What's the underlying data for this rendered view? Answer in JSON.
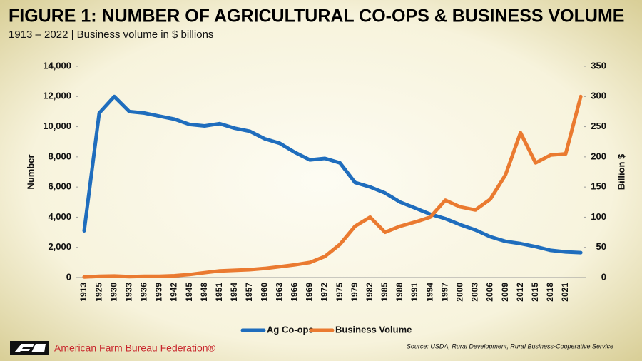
{
  "chart_data": {
    "type": "line",
    "title": "FIGURE 1: NUMBER OF AGRICULTURAL CO-OPS & BUSINESS VOLUME",
    "subtitle": "1913 – 2022 | Business volume in $ billions",
    "ylabel": "Number",
    "y2label": "Billion $",
    "categories": [
      "1913",
      "1925",
      "1930",
      "1933",
      "1936",
      "1939",
      "1942",
      "1945",
      "1948",
      "1951",
      "1954",
      "1957",
      "1960",
      "1963",
      "1966",
      "1969",
      "1972",
      "1975",
      "1979",
      "1982",
      "1985",
      "1988",
      "1991",
      "1994",
      "1997",
      "2000",
      "2003",
      "2006",
      "2009",
      "2012",
      "2015",
      "2018",
      "2021",
      null
    ],
    "series": [
      {
        "name": "Ag Co-ops",
        "color": "#1f6dbd",
        "values": [
          3100,
          10900,
          12000,
          11000,
          10900,
          10700,
          10500,
          10150,
          10050,
          10200,
          9900,
          9700,
          9200,
          8900,
          8300,
          7800,
          7900,
          7600,
          6300,
          6000,
          5600,
          5000,
          4600,
          4200,
          3900,
          3500,
          3150,
          2700,
          2400,
          2250,
          2050,
          1800,
          1700,
          1650
        ]
      },
      {
        "name": "Business Volume",
        "color": "#ea7a30",
        "axis": "y2",
        "values": [
          1,
          2,
          2.5,
          1.5,
          2,
          2,
          3,
          5,
          8,
          11,
          12,
          13,
          15,
          18,
          21,
          25,
          35,
          55,
          85,
          100,
          75,
          85,
          92,
          100,
          128,
          117,
          112,
          130,
          170,
          240,
          190,
          203,
          205,
          300
        ]
      }
    ],
    "ylim": [
      0,
      14000
    ],
    "yticks": [
      0,
      {
        "value": 2000,
        "label": "2,000"
      },
      {
        "value": 4000,
        "label": "4,000"
      },
      {
        "value": 6000,
        "label": "6,000"
      },
      {
        "value": 8000,
        "label": "8,000"
      },
      {
        "value": 10000,
        "label": "10,000"
      },
      {
        "value": 12000,
        "label": "12,000"
      },
      {
        "value": 14000,
        "label": "14,000"
      }
    ],
    "y2lim": [
      0,
      350
    ],
    "y2ticks": [
      0,
      50,
      100,
      150,
      200,
      250,
      300,
      350
    ],
    "legend": "bottom",
    "source": "Source: USDA, Rural Development, Rural Business-Cooperative Service",
    "organization": "American Farm Bureau Federation®"
  }
}
